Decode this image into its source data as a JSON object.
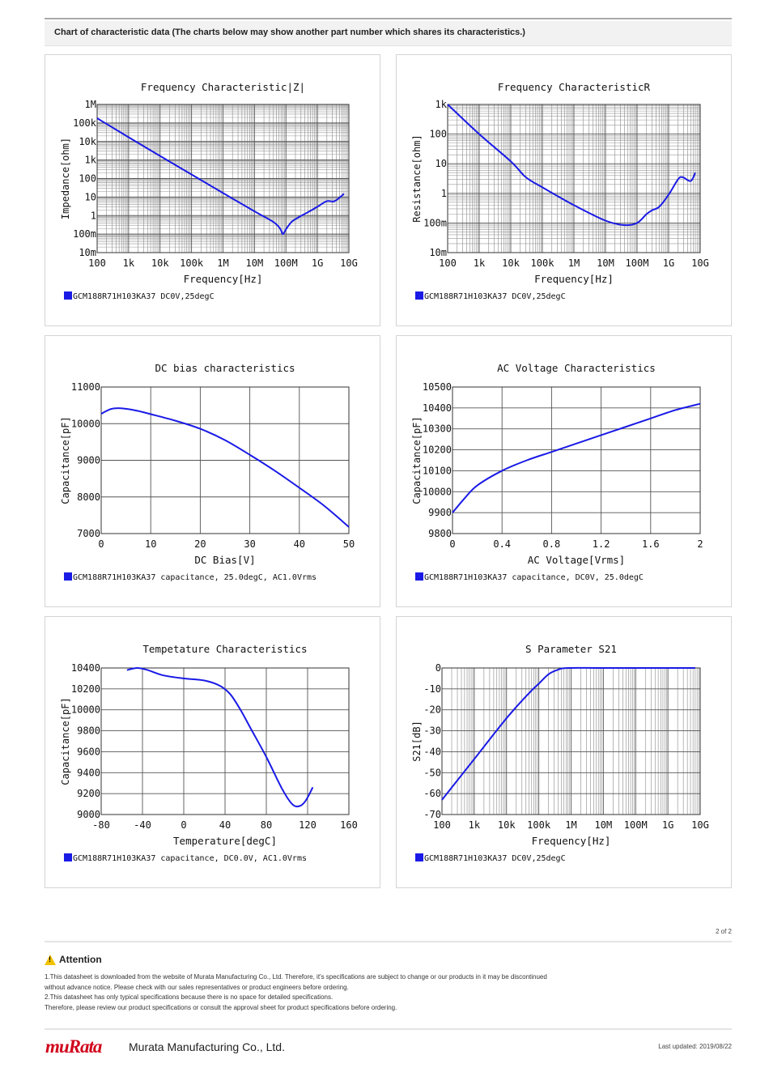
{
  "header": {
    "title": "Chart of characteristic data (The charts below may show another part number which shares its characteristics.)"
  },
  "chart_data": [
    {
      "type": "line",
      "scale_x": "log",
      "scale_y": "log",
      "title": "Frequency  Characteristic|Z|",
      "xlabel": "Frequency[Hz]",
      "ylabel": "Impedance[ohm]",
      "xlim": [
        100,
        10000000000
      ],
      "ylim": [
        0.01,
        1000000
      ],
      "xticks": [
        {
          "v": 100,
          "label": "100"
        },
        {
          "v": 1000,
          "label": "1k"
        },
        {
          "v": 10000,
          "label": "10k"
        },
        {
          "v": 100000,
          "label": "100k"
        },
        {
          "v": 1000000,
          "label": "1M"
        },
        {
          "v": 10000000,
          "label": "10M"
        },
        {
          "v": 100000000,
          "label": "100M"
        },
        {
          "v": 1000000000,
          "label": "1G"
        },
        {
          "v": 10000000000,
          "label": "10G"
        }
      ],
      "yticks": [
        {
          "v": 0.01,
          "label": "10m"
        },
        {
          "v": 0.1,
          "label": "100m"
        },
        {
          "v": 1,
          "label": "1"
        },
        {
          "v": 10,
          "label": "10"
        },
        {
          "v": 100,
          "label": "100"
        },
        {
          "v": 1000,
          "label": "1k"
        },
        {
          "v": 10000,
          "label": "10k"
        },
        {
          "v": 100000,
          "label": "100k"
        },
        {
          "v": 1000000,
          "label": "1M"
        }
      ],
      "legend": "GCM188R71H103KA37 DC0V,25degC",
      "color": "#1a1ae6",
      "x": [
        100,
        1000,
        10000,
        100000,
        1000000,
        10000000,
        40000000,
        65000000,
        80000000,
        100000000,
        150000000,
        250000000,
        600000000,
        1000000000,
        2000000000,
        3500000000,
        7000000000
      ],
      "y": [
        180000,
        17000,
        1650,
        165,
        16.5,
        1.7,
        0.45,
        0.2,
        0.1,
        0.18,
        0.45,
        0.8,
        1.8,
        3,
        6,
        6,
        15
      ]
    },
    {
      "type": "line",
      "scale_x": "log",
      "scale_y": "log",
      "title": "Frequency  CharacteristicR",
      "xlabel": "Frequency[Hz]",
      "ylabel": "Resistance[ohm]",
      "xlim": [
        100,
        10000000000
      ],
      "ylim": [
        0.01,
        1000
      ],
      "xticks": [
        {
          "v": 100,
          "label": "100"
        },
        {
          "v": 1000,
          "label": "1k"
        },
        {
          "v": 10000,
          "label": "10k"
        },
        {
          "v": 100000,
          "label": "100k"
        },
        {
          "v": 1000000,
          "label": "1M"
        },
        {
          "v": 10000000,
          "label": "10M"
        },
        {
          "v": 100000000,
          "label": "100M"
        },
        {
          "v": 1000000000,
          "label": "1G"
        },
        {
          "v": 10000000000,
          "label": "10G"
        }
      ],
      "yticks": [
        {
          "v": 0.01,
          "label": "10m"
        },
        {
          "v": 0.1,
          "label": "100m"
        },
        {
          "v": 1,
          "label": "1"
        },
        {
          "v": 10,
          "label": "10"
        },
        {
          "v": 100,
          "label": "100"
        },
        {
          "v": 1000,
          "label": "1k"
        }
      ],
      "legend": "GCM188R71H103KA37 DC0V,25degC",
      "color": "#1a1ae6",
      "x": [
        100,
        1000,
        10000,
        30000,
        100000,
        1000000,
        10000000,
        40000000,
        100000000,
        200000000,
        300000000,
        500000000,
        1000000000,
        2000000000,
        2800000000,
        5000000000,
        7000000000
      ],
      "y": [
        1000,
        100,
        12,
        3.5,
        1.6,
        0.4,
        0.12,
        0.085,
        0.1,
        0.2,
        0.27,
        0.35,
        0.9,
        3,
        3.5,
        2.6,
        5
      ]
    },
    {
      "type": "line",
      "scale_x": "linear",
      "scale_y": "linear",
      "title": "DC bias characteristics",
      "xlabel": "DC Bias[V]",
      "ylabel": "Capacitance[pF]",
      "xlim": [
        0,
        50
      ],
      "ylim": [
        7000,
        11000
      ],
      "xticks": [
        {
          "v": 0,
          "label": "0"
        },
        {
          "v": 10,
          "label": "10"
        },
        {
          "v": 20,
          "label": "20"
        },
        {
          "v": 30,
          "label": "30"
        },
        {
          "v": 40,
          "label": "40"
        },
        {
          "v": 50,
          "label": "50"
        }
      ],
      "yticks": [
        {
          "v": 7000,
          "label": "7000"
        },
        {
          "v": 8000,
          "label": "8000"
        },
        {
          "v": 9000,
          "label": "9000"
        },
        {
          "v": 10000,
          "label": "10000"
        },
        {
          "v": 11000,
          "label": "11000"
        }
      ],
      "legend": "GCM188R71H103KA37 capacitance, 25.0degC, AC1.0Vrms",
      "color": "#1a1ae6",
      "x": [
        0,
        2,
        4,
        7,
        10,
        15,
        20,
        25,
        30,
        35,
        40,
        45,
        50
      ],
      "y": [
        10270,
        10400,
        10420,
        10360,
        10260,
        10080,
        9860,
        9550,
        9150,
        8720,
        8250,
        7760,
        7180
      ]
    },
    {
      "type": "line",
      "scale_x": "linear",
      "scale_y": "linear",
      "title": "AC Voltage Characteristics",
      "xlabel": "AC Voltage[Vrms]",
      "ylabel": "Capacitance[pF]",
      "xlim": [
        0,
        2
      ],
      "ylim": [
        9800,
        10500
      ],
      "xticks": [
        {
          "v": 0,
          "label": "0"
        },
        {
          "v": 0.4,
          "label": "0.4"
        },
        {
          "v": 0.8,
          "label": "0.8"
        },
        {
          "v": 1.2,
          "label": "1.2"
        },
        {
          "v": 1.6,
          "label": "1.6"
        },
        {
          "v": 2,
          "label": "2"
        }
      ],
      "yticks": [
        {
          "v": 9800,
          "label": "9800"
        },
        {
          "v": 9900,
          "label": "9900"
        },
        {
          "v": 10000,
          "label": "10000"
        },
        {
          "v": 10100,
          "label": "10100"
        },
        {
          "v": 10200,
          "label": "10200"
        },
        {
          "v": 10300,
          "label": "10300"
        },
        {
          "v": 10400,
          "label": "10400"
        },
        {
          "v": 10500,
          "label": "10500"
        }
      ],
      "legend": "GCM188R71H103KA37 capacitance, DC0V, 25.0degC",
      "color": "#1a1ae6",
      "x": [
        0,
        0.1,
        0.2,
        0.4,
        0.6,
        0.8,
        1.0,
        1.2,
        1.4,
        1.6,
        1.8,
        2.0
      ],
      "y": [
        9900,
        9970,
        10030,
        10100,
        10150,
        10190,
        10230,
        10270,
        10310,
        10350,
        10390,
        10420
      ]
    },
    {
      "type": "line",
      "scale_x": "linear",
      "scale_y": "linear",
      "title": "Tempetature  Characteristics",
      "xlabel": "Temperature[degC]",
      "ylabel": "Capacitance[pF]",
      "xlim": [
        -80,
        160
      ],
      "ylim": [
        9000,
        10400
      ],
      "xticks": [
        {
          "v": -80,
          "label": "-80"
        },
        {
          "v": -40,
          "label": "-40"
        },
        {
          "v": 0,
          "label": "0"
        },
        {
          "v": 40,
          "label": "40"
        },
        {
          "v": 80,
          "label": "80"
        },
        {
          "v": 120,
          "label": "120"
        },
        {
          "v": 160,
          "label": "160"
        }
      ],
      "yticks": [
        {
          "v": 9000,
          "label": "9000"
        },
        {
          "v": 9200,
          "label": "9200"
        },
        {
          "v": 9400,
          "label": "9400"
        },
        {
          "v": 9600,
          "label": "9600"
        },
        {
          "v": 9800,
          "label": "9800"
        },
        {
          "v": 10000,
          "label": "10000"
        },
        {
          "v": 10200,
          "label": "10200"
        },
        {
          "v": 10400,
          "label": "10400"
        }
      ],
      "legend": "GCM188R71H103KA37 capacitance, DC0.0V, AC1.0Vrms",
      "color": "#1a1ae6",
      "x": [
        -55,
        -45,
        -35,
        -20,
        0,
        20,
        35,
        45,
        55,
        65,
        80,
        95,
        105,
        112,
        118,
        125
      ],
      "y": [
        10380,
        10400,
        10380,
        10330,
        10300,
        10280,
        10230,
        10150,
        10000,
        9820,
        9550,
        9250,
        9100,
        9080,
        9130,
        9260
      ]
    },
    {
      "type": "line",
      "scale_x": "log",
      "scale_y": "linear",
      "title": "S Parameter S21",
      "xlabel": "Frequency[Hz]",
      "ylabel": "S21[dB]",
      "xlim": [
        100,
        10000000000
      ],
      "ylim": [
        -70,
        0
      ],
      "xticks": [
        {
          "v": 100,
          "label": "100"
        },
        {
          "v": 1000,
          "label": "1k"
        },
        {
          "v": 10000,
          "label": "10k"
        },
        {
          "v": 100000,
          "label": "100k"
        },
        {
          "v": 1000000,
          "label": "1M"
        },
        {
          "v": 10000000,
          "label": "10M"
        },
        {
          "v": 100000000,
          "label": "100M"
        },
        {
          "v": 1000000000,
          "label": "1G"
        },
        {
          "v": 10000000000,
          "label": "10G"
        }
      ],
      "yticks": [
        {
          "v": -70,
          "label": "-70"
        },
        {
          "v": -60,
          "label": "-60"
        },
        {
          "v": -50,
          "label": "-50"
        },
        {
          "v": -40,
          "label": "-40"
        },
        {
          "v": -30,
          "label": "-30"
        },
        {
          "v": -20,
          "label": "-20"
        },
        {
          "v": -10,
          "label": "-10"
        },
        {
          "v": 0,
          "label": "0"
        }
      ],
      "legend": "GCM188R71H103KA37 DC0V,25degC",
      "color": "#1a1ae6",
      "x": [
        100,
        1000,
        10000,
        50000,
        100000,
        200000,
        400000,
        800000,
        10000000,
        1000000000,
        7000000000
      ],
      "y": [
        -63,
        -43.5,
        -24,
        -12,
        -7.5,
        -3,
        -0.8,
        0,
        0,
        0,
        0
      ]
    }
  ],
  "footer": {
    "page": "2 of 2",
    "attention_title": "Attention",
    "notes": [
      "1.This datasheet is downloaded from the website of Murata Manufacturing Co., Ltd. Therefore, it's specifications are subject to change or our products in it may be discontinued",
      "without advance notice. Please check with our sales representatives or product engineers before ordering.",
      "2.This datasheet has only typical specifications because there is no space for detailed specifications.",
      "Therefore, please review our product specifications or consult the approval sheet for product specifications before ordering."
    ],
    "logo": "muRata",
    "company": "Murata Manufacturing Co., Ltd.",
    "last_updated": "Last updated: 2019/08/22"
  }
}
